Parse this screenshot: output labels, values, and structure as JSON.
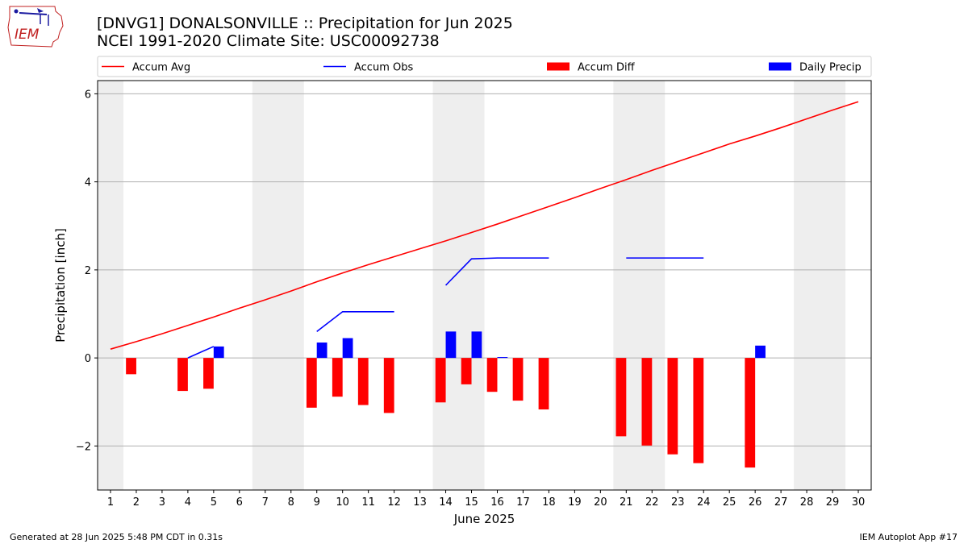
{
  "header": {
    "title_line1": "[DNVG1] DONALSONVILLE :: Precipitation for Jun 2025",
    "title_line2": "NCEI 1991-2020 Climate Site: USC00092738",
    "logo_text": "IEM"
  },
  "footer": {
    "generated": "Generated at 28 Jun 2025 5:48 PM CDT in 0.31s",
    "app": "IEM Autoplot App #17"
  },
  "colors": {
    "avg": "#ff0000",
    "obs": "#0000ff",
    "diff": "#ff0000",
    "daily": "#0000ff",
    "weekend": "#eeeeee",
    "grid": "#b0b0b0"
  },
  "chart_data": {
    "type": "bar",
    "xlabel": "June 2025",
    "ylabel": "Precipitation [inch]",
    "xlim": [
      0.5,
      30.5
    ],
    "ylim": [
      -3.0,
      6.3
    ],
    "yticks": [
      -2,
      0,
      2,
      4,
      6
    ],
    "xticks": [
      1,
      2,
      3,
      4,
      5,
      6,
      7,
      8,
      9,
      10,
      11,
      12,
      13,
      14,
      15,
      16,
      17,
      18,
      19,
      20,
      21,
      22,
      23,
      24,
      25,
      26,
      27,
      28,
      29,
      30
    ],
    "grid": "horizontal",
    "legend_placement": "top",
    "legend": [
      "Accum Avg",
      "Accum Obs",
      "Accum Diff",
      "Daily Precip"
    ],
    "weekend_bands": [
      [
        0.5,
        1.5
      ],
      [
        6.5,
        8.5
      ],
      [
        13.5,
        15.5
      ],
      [
        20.5,
        22.5
      ],
      [
        27.5,
        29.5
      ]
    ],
    "series": [
      {
        "name": "Accum Avg",
        "kind": "line",
        "x": [
          1,
          2,
          3,
          4,
          5,
          6,
          7,
          8,
          9,
          10,
          11,
          12,
          13,
          14,
          15,
          16,
          17,
          18,
          19,
          20,
          21,
          22,
          23,
          24,
          25,
          26,
          27,
          28,
          29,
          30
        ],
        "values": [
          0.2,
          0.37,
          0.55,
          0.74,
          0.93,
          1.13,
          1.32,
          1.52,
          1.73,
          1.93,
          2.12,
          2.3,
          2.48,
          2.66,
          2.85,
          3.04,
          3.24,
          3.44,
          3.64,
          3.85,
          4.05,
          4.26,
          4.46,
          4.66,
          4.86,
          5.04,
          5.23,
          5.43,
          5.63,
          5.82
        ]
      },
      {
        "name": "Accum Obs",
        "kind": "line",
        "segments": [
          {
            "x": [
              4,
              5
            ],
            "values": [
              0.0,
              0.26
            ]
          },
          {
            "x": [
              9,
              10,
              11,
              12
            ],
            "values": [
              0.6,
              1.05,
              1.05,
              1.05
            ]
          },
          {
            "x": [
              14,
              15,
              16,
              17,
              18
            ],
            "values": [
              1.65,
              2.25,
              2.27,
              2.27,
              2.27
            ]
          },
          {
            "x": [
              21,
              22,
              23,
              24
            ],
            "values": [
              2.27,
              2.27,
              2.27,
              2.27
            ]
          }
        ]
      },
      {
        "name": "Accum Diff",
        "kind": "bar",
        "x": [
          2,
          4,
          5,
          9,
          10,
          11,
          12,
          14,
          15,
          16,
          17,
          18,
          21,
          22,
          23,
          24,
          26
        ],
        "values": [
          -0.37,
          -0.75,
          -0.7,
          -1.13,
          -0.88,
          -1.07,
          -1.25,
          -1.01,
          -0.6,
          -0.77,
          -0.97,
          -1.17,
          -1.78,
          -1.99,
          -2.19,
          -2.39,
          -2.49
        ]
      },
      {
        "name": "Daily Precip",
        "kind": "bar",
        "x": [
          5,
          9,
          10,
          14,
          15,
          16,
          26
        ],
        "values": [
          0.26,
          0.35,
          0.45,
          0.6,
          0.6,
          0.02,
          0.28
        ]
      }
    ]
  }
}
